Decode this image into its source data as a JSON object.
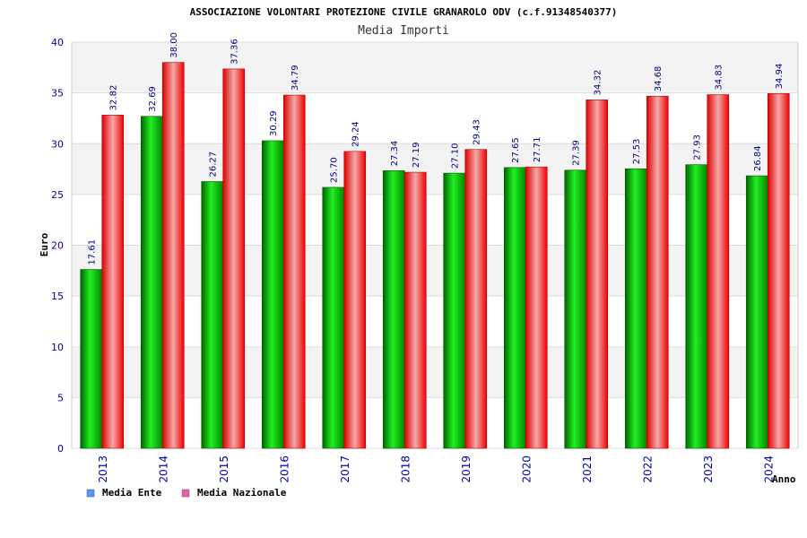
{
  "chart_data": {
    "type": "bar",
    "title": "ASSOCIAZIONE VOLONTARI PROTEZIONE CIVILE GRANAROLO ODV (c.f.91348540377)",
    "subtitle": "Media Importi",
    "xlabel": "Anno",
    "ylabel": "Euro",
    "ylim": [
      0,
      40
    ],
    "yticks": [
      "0",
      "5",
      "10",
      "15",
      "20",
      "25",
      "30",
      "35",
      "40"
    ],
    "categories": [
      "2013",
      "2014",
      "2015",
      "2016",
      "2017",
      "2018",
      "2019",
      "2020",
      "2021",
      "2022",
      "2023",
      "2024"
    ],
    "series": [
      {
        "name": "Media Ente",
        "values": [
          17.61,
          32.69,
          26.27,
          30.29,
          25.7,
          27.34,
          27.1,
          27.65,
          27.39,
          27.53,
          27.93,
          26.84
        ],
        "labels": [
          "17.61",
          "32.69",
          "26.27",
          "30.29",
          "25.70",
          "27.34",
          "27.10",
          "27.65",
          "27.39",
          "27.53",
          "27.93",
          "26.84"
        ]
      },
      {
        "name": "Media Nazionale",
        "values": [
          32.82,
          38.0,
          37.36,
          34.79,
          29.24,
          27.19,
          29.43,
          27.71,
          34.32,
          34.68,
          34.83,
          34.94
        ],
        "labels": [
          "32.82",
          "38.00",
          "37.36",
          "34.79",
          "29.24",
          "27.19",
          "29.43",
          "27.71",
          "34.32",
          "34.68",
          "34.83",
          "34.94"
        ]
      }
    ],
    "grid": true,
    "legend_position": "bottom-left",
    "colors": {
      "ente": "#00aa00",
      "nazionale": "#ee0000",
      "legend_ente": "#5599ee",
      "legend_nazionale": "#dd66aa",
      "band": "#f3f3f3",
      "grid": "#dddddd",
      "axis_text": "#0000aa"
    }
  }
}
